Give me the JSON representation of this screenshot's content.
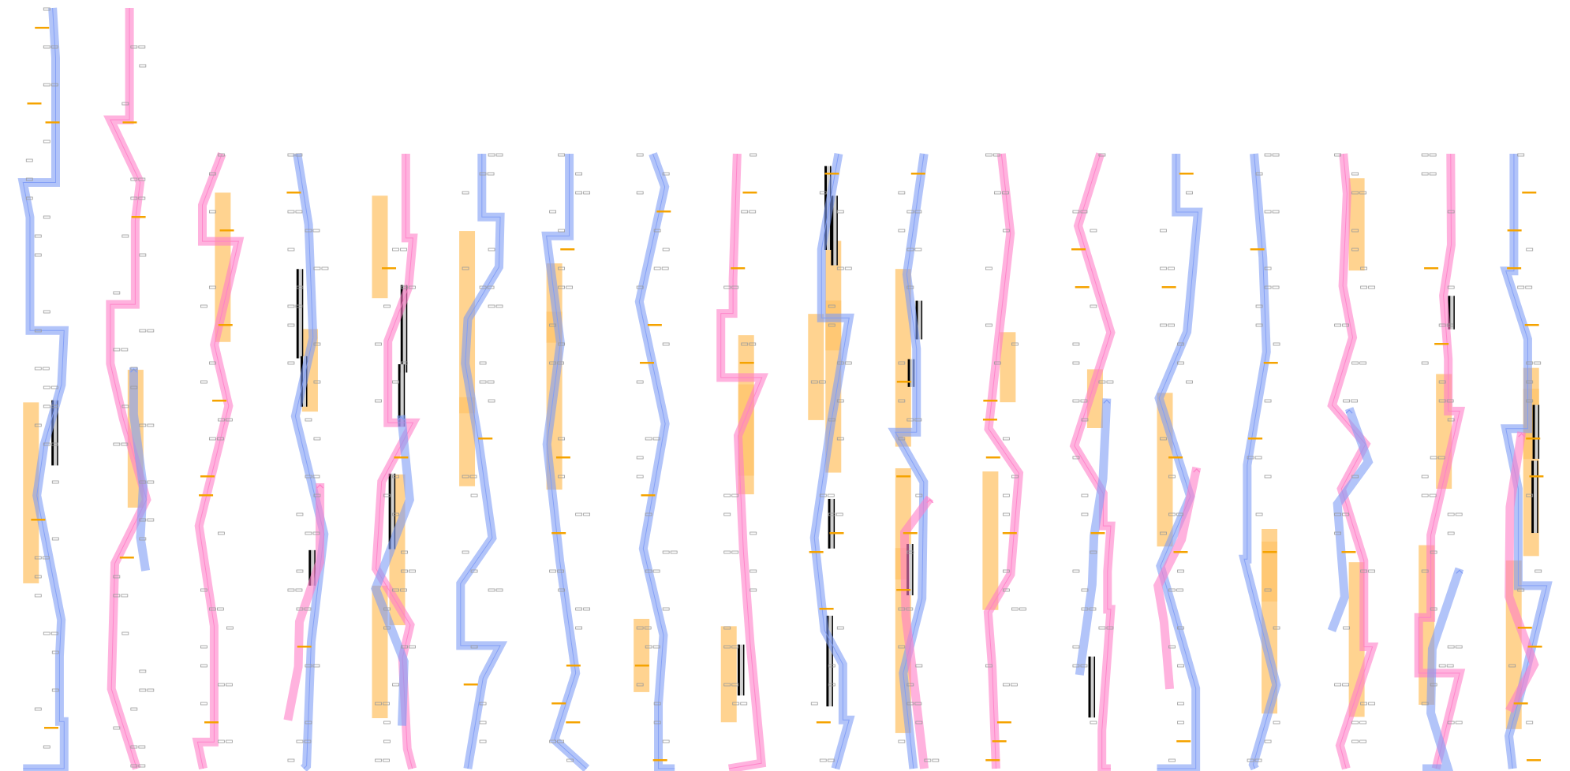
{
  "colors": {
    "background": "#ffffff",
    "blue_track": "#7f9cf5",
    "pink_track": "#ff7fc8",
    "overlap_purple": "#b060d0",
    "orange_block": "#ffc46b",
    "orange_dash": "#f5a300",
    "marker_outline": "#9a9a9a",
    "bar_dark": "#000000",
    "bar_light": "#d0d0d0"
  },
  "columns": 18
}
